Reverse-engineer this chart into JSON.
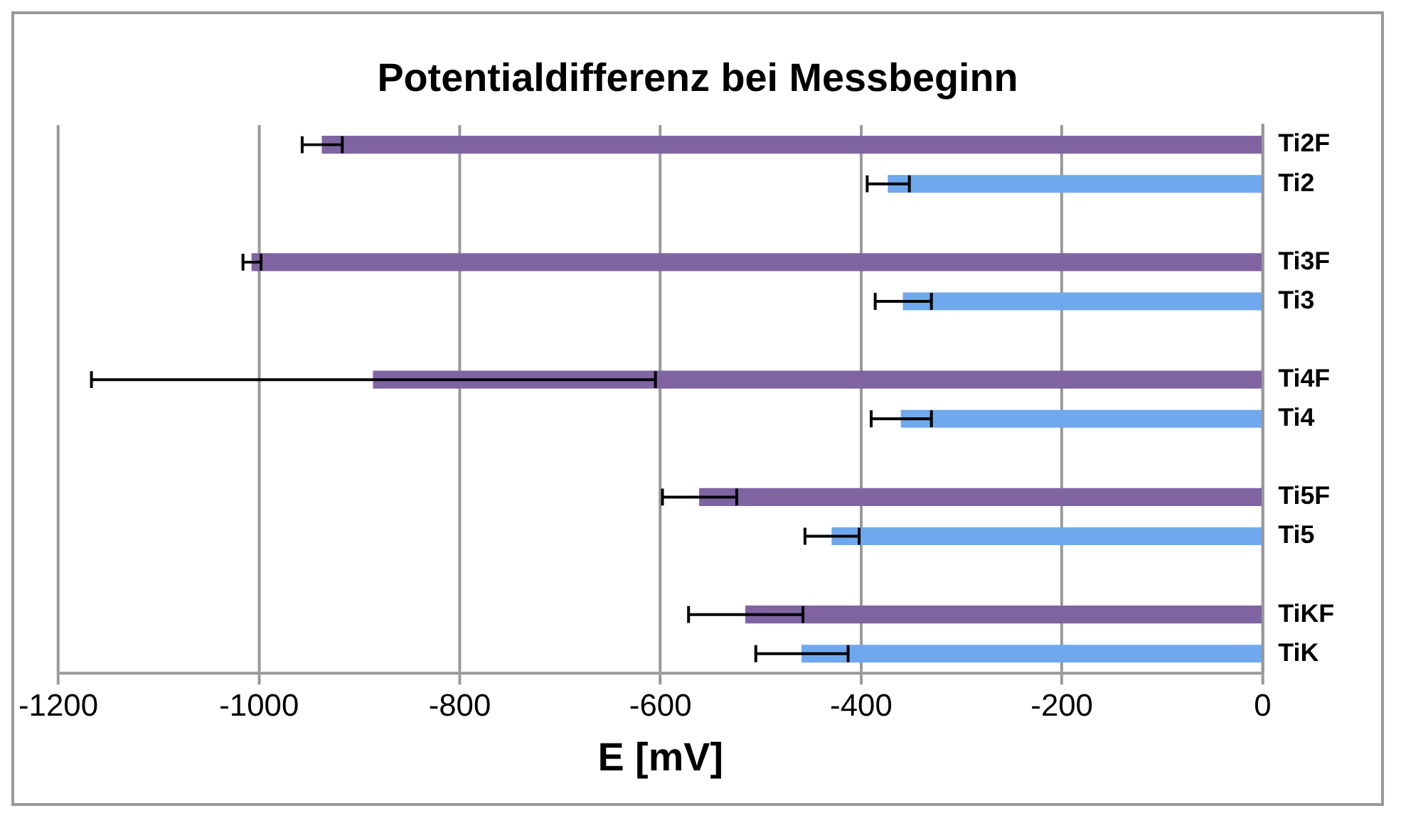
{
  "chart_data": {
    "type": "bar",
    "orientation": "horizontal",
    "title": "Potentialdifferenz bei Messbeginn",
    "xlabel": "E [mV]",
    "categories": [
      "Ti2F",
      "Ti2",
      null,
      "Ti3F",
      "Ti3",
      null,
      "Ti4F",
      "Ti4",
      null,
      "Ti5F",
      "Ti5",
      null,
      "TiKF",
      "TiK"
    ],
    "values": [
      -937,
      -373,
      null,
      -1007,
      -358,
      null,
      -886,
      -360,
      null,
      -561,
      -429,
      null,
      -515,
      -459
    ],
    "errors": [
      20,
      21,
      null,
      9,
      28,
      null,
      281,
      30,
      null,
      37,
      27,
      null,
      57,
      46
    ],
    "colors": [
      "#8064a2",
      "#6fa8ec",
      null,
      "#8064a2",
      "#6fa8ec",
      null,
      "#8064a2",
      "#6fa8ec",
      null,
      "#8064a2",
      "#6fa8ec",
      null,
      "#8064a2",
      "#6fa8ec"
    ],
    "xlim": [
      -1200,
      0
    ],
    "xticks": [
      -1200,
      -1000,
      -800,
      -600,
      -400,
      -200,
      0
    ],
    "grid": "x",
    "legend": false
  }
}
